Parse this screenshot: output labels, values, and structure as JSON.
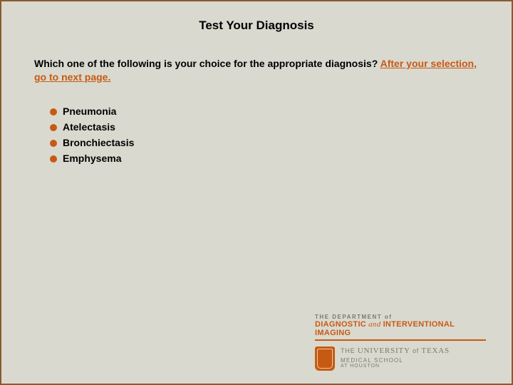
{
  "title": "Test Your Diagnosis",
  "question": {
    "prefix": "Which one of the following is your choice for the appropriate diagnosis? ",
    "highlight": "After your selection, go to next page."
  },
  "options": [
    {
      "label": "Pneumonia"
    },
    {
      "label": "Atelectasis"
    },
    {
      "label": "Bronchiectasis"
    },
    {
      "label": "Emphysema"
    }
  ],
  "footer": {
    "dept_line1": "THE DEPARTMENT of",
    "dept_diag": "DIAGNOSTIC",
    "dept_amp": " and ",
    "dept_interv": "INTERVENTIONAL IMAGING",
    "univ_the": "THE ",
    "univ_univ": "UNIVERSITY",
    "univ_of": " of ",
    "univ_tx": "TEXAS",
    "univ_line2": "MEDICAL SCHOOL",
    "univ_line3": "AT HOUSTON"
  },
  "colors": {
    "accent": "#c75a12",
    "bg": "#d9d9d0",
    "border": "#8a5a2b",
    "muted": "#7a7a72"
  }
}
